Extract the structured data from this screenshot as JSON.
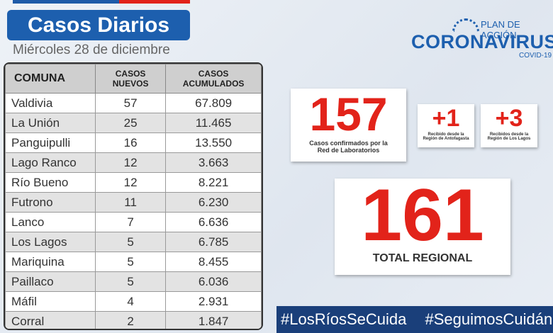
{
  "header": {
    "title": "Casos Diarios",
    "date": "Miércoles 28 de diciembre"
  },
  "logo": {
    "top": "PLAN DE ACCIÓN",
    "main": "CORONAVIRUS",
    "sub": "COVID-19"
  },
  "table": {
    "columns": [
      "COMUNA",
      "CASOS NUEVOS",
      "CASOS ACUMULADOS"
    ],
    "rows": [
      [
        "Valdivia",
        57,
        "67.809"
      ],
      [
        "La Unión",
        25,
        "11.465"
      ],
      [
        "Panguipulli",
        16,
        "13.550"
      ],
      [
        "Lago Ranco",
        12,
        "3.663"
      ],
      [
        "Río Bueno",
        12,
        "8.221"
      ],
      [
        "Futrono",
        11,
        "6.230"
      ],
      [
        "Lanco",
        7,
        "6.636"
      ],
      [
        "Los Lagos",
        5,
        "6.785"
      ],
      [
        "Mariquina",
        5,
        "8.455"
      ],
      [
        "Paillaco",
        5,
        "6.036"
      ],
      [
        "Máfil",
        4,
        "2.931"
      ],
      [
        "Corral",
        2,
        "1.847"
      ]
    ]
  },
  "stats": {
    "lab": {
      "value": 157,
      "label": "Casos confirmados por la Red de Laboratorios"
    },
    "antofagasta": {
      "value": "+1",
      "label": "Recibido desde la Región de Antofagasta"
    },
    "loslagos": {
      "value": "+3",
      "label": "Recibidos desde la Región de Los Lagos"
    },
    "total": {
      "value": 161,
      "label": "TOTAL REGIONAL"
    }
  },
  "hashtags": [
    "#LosRíosSeCuida",
    "#SeguimosCuidándonos"
  ]
}
